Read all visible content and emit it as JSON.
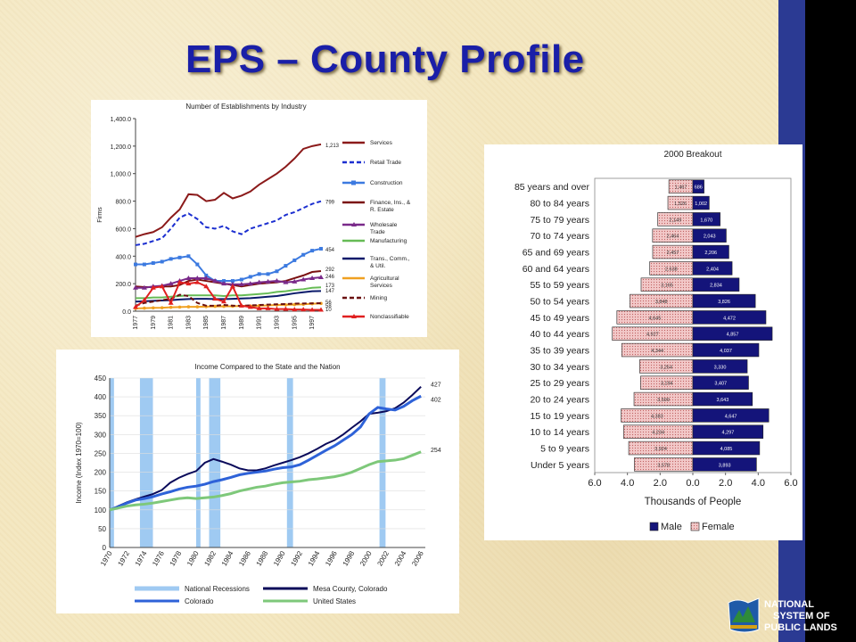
{
  "slide": {
    "title": "EPS – County Profile",
    "colors": {
      "title": "#1a1fa8",
      "side_bar": "#2b3a93",
      "background": "#f4e7c0"
    }
  },
  "logo": {
    "line1": "NATIONAL",
    "line2": "SYSTEM OF",
    "line3": "PUBLIC LANDS",
    "icon": "blm-emblem-icon"
  },
  "chart_data": [
    {
      "type": "line",
      "title": "Number of Establishments by Industry",
      "ylabel": "Firms",
      "xlabel": "",
      "ylim": [
        0,
        1400
      ],
      "yticks": [
        "0.0",
        "200.0",
        "400.0",
        "600.0",
        "800.0",
        "1,000.0",
        "1,200.0",
        "1,400.0"
      ],
      "x": [
        1977,
        1978,
        1979,
        1980,
        1981,
        1982,
        1983,
        1984,
        1985,
        1986,
        1987,
        1988,
        1989,
        1990,
        1991,
        1992,
        1993,
        1994,
        1995,
        1996,
        1997,
        1998
      ],
      "xticks": [
        "1977",
        "1979",
        "1981",
        "1983",
        "1985",
        "1987",
        "1989",
        "1991",
        "1993",
        "1995",
        "1997"
      ],
      "series": [
        {
          "name": "Services",
          "color": "#8b1a1a",
          "style": "solid",
          "end_label": "1,213",
          "values": [
            540,
            560,
            575,
            610,
            680,
            740,
            850,
            845,
            800,
            810,
            860,
            820,
            840,
            870,
            920,
            960,
            1000,
            1050,
            1110,
            1180,
            1200,
            1213
          ]
        },
        {
          "name": "Retail Trade",
          "color": "#1c2fd0",
          "style": "dashed",
          "end_label": "799",
          "values": [
            480,
            490,
            510,
            530,
            600,
            680,
            710,
            670,
            610,
            600,
            620,
            580,
            560,
            600,
            620,
            640,
            660,
            700,
            720,
            750,
            780,
            799
          ]
        },
        {
          "name": "Construction",
          "color": "#3c7ae0",
          "style": "solid",
          "end_label": "454",
          "values": [
            340,
            340,
            350,
            360,
            380,
            390,
            400,
            340,
            260,
            220,
            220,
            220,
            230,
            250,
            270,
            270,
            290,
            330,
            370,
            410,
            440,
            454
          ]
        },
        {
          "name": "Finance, Ins., & R. Estate",
          "color": "#7a1010",
          "style": "solid",
          "end_label": "292",
          "values": [
            180,
            175,
            175,
            180,
            180,
            190,
            220,
            230,
            220,
            210,
            200,
            190,
            180,
            190,
            200,
            205,
            210,
            220,
            240,
            260,
            285,
            292
          ]
        },
        {
          "name": "Wholesale Trade",
          "color": "#7a2a8a",
          "style": "solid",
          "end_label": "246",
          "values": [
            170,
            170,
            180,
            185,
            200,
            220,
            240,
            240,
            240,
            220,
            200,
            195,
            195,
            200,
            210,
            215,
            220,
            210,
            215,
            230,
            240,
            246
          ]
        },
        {
          "name": "Manufacturing",
          "color": "#66bb55",
          "style": "solid",
          "end_label": "173",
          "values": [
            95,
            95,
            100,
            100,
            105,
            110,
            115,
            115,
            115,
            115,
            110,
            115,
            115,
            120,
            125,
            130,
            140,
            145,
            155,
            160,
            170,
            173
          ]
        },
        {
          "name": "Trans., Comm., & Util.",
          "color": "#0a1a6a",
          "style": "solid",
          "end_label": "147",
          "values": [
            70,
            72,
            75,
            78,
            80,
            85,
            88,
            90,
            90,
            88,
            88,
            90,
            92,
            95,
            100,
            105,
            110,
            120,
            130,
            138,
            145,
            147
          ]
        },
        {
          "name": "Agricultural Services",
          "color": "#f0a020",
          "style": "solid",
          "end_label": "56",
          "values": [
            20,
            22,
            24,
            25,
            28,
            30,
            32,
            32,
            33,
            35,
            35,
            36,
            38,
            38,
            40,
            42,
            45,
            46,
            48,
            50,
            54,
            56
          ]
        },
        {
          "name": "Mining",
          "color": "#6a1010",
          "style": "dashed",
          "end_label": "58",
          "values": [
            40,
            60,
            70,
            80,
            90,
            120,
            110,
            60,
            40,
            40,
            45,
            40,
            40,
            42,
            45,
            48,
            50,
            52,
            55,
            56,
            57,
            58
          ]
        },
        {
          "name": "Nonclassifiable",
          "color": "#e02020",
          "style": "solid",
          "end_label": "10",
          "values": [
            30,
            80,
            170,
            180,
            60,
            210,
            200,
            210,
            180,
            90,
            70,
            180,
            40,
            30,
            20,
            20,
            15,
            15,
            12,
            12,
            10,
            10
          ]
        }
      ]
    },
    {
      "type": "line",
      "title": "Income Compared to the State and the Nation",
      "ylabel": "Income (Index 1970=100)",
      "xlabel": "",
      "ylim": [
        0,
        450
      ],
      "yticks": [
        "0",
        "50",
        "100",
        "150",
        "200",
        "250",
        "300",
        "350",
        "400",
        "450"
      ],
      "x": [
        1970,
        1971,
        1972,
        1973,
        1974,
        1975,
        1976,
        1977,
        1978,
        1979,
        1980,
        1981,
        1982,
        1983,
        1984,
        1985,
        1986,
        1987,
        1988,
        1989,
        1990,
        1991,
        1992,
        1993,
        1994,
        1995,
        1996,
        1997,
        1998,
        1999,
        2000,
        2001,
        2002,
        2003,
        2004,
        2005,
        2006
      ],
      "xticks": [
        "1970",
        "1972",
        "1974",
        "1976",
        "1978",
        "1980",
        "1982",
        "1984",
        "1986",
        "1988",
        "1990",
        "1992",
        "1994",
        "1996",
        "1998",
        "2000",
        "2002",
        "2004",
        "2006"
      ],
      "recessions": [
        [
          1970,
          1970.5
        ],
        [
          1973.5,
          1975
        ],
        [
          1980,
          1980.5
        ],
        [
          1981.5,
          1982.8
        ],
        [
          1990.5,
          1991.2
        ],
        [
          2001.2,
          2001.9
        ]
      ],
      "series": [
        {
          "name": "Mesa County, Colorado",
          "color": "#0a0a5a",
          "end_label": "427",
          "values": [
            100,
            110,
            120,
            128,
            135,
            142,
            152,
            172,
            185,
            195,
            203,
            225,
            235,
            228,
            220,
            210,
            205,
            205,
            210,
            218,
            225,
            232,
            240,
            250,
            262,
            275,
            285,
            300,
            318,
            335,
            355,
            358,
            362,
            370,
            385,
            405,
            427
          ]
        },
        {
          "name": "Colorado",
          "color": "#2e62d8",
          "end_label": "402",
          "values": [
            100,
            108,
            118,
            126,
            130,
            135,
            142,
            148,
            155,
            160,
            163,
            168,
            175,
            180,
            186,
            193,
            197,
            200,
            203,
            208,
            212,
            214,
            220,
            232,
            245,
            258,
            270,
            285,
            300,
            320,
            355,
            372,
            368,
            365,
            375,
            390,
            402
          ]
        },
        {
          "name": "United States",
          "color": "#7ec87a",
          "end_label": "254",
          "values": [
            100,
            105,
            110,
            113,
            115,
            118,
            122,
            126,
            130,
            132,
            130,
            132,
            134,
            138,
            143,
            150,
            155,
            160,
            163,
            168,
            172,
            174,
            176,
            180,
            182,
            185,
            188,
            193,
            200,
            210,
            220,
            228,
            230,
            232,
            236,
            245,
            254
          ]
        }
      ],
      "legend": [
        "National Recessions",
        "Mesa County, Colorado",
        "Colorado",
        "United States"
      ],
      "legend_colors": [
        "#9fcaf2",
        "#0a0a5a",
        "#2e62d8",
        "#7ec87a"
      ]
    },
    {
      "type": "bar",
      "title": "2000 Breakout",
      "xlabel": "Thousands of People",
      "xlim": [
        -6,
        6
      ],
      "xticks": [
        "6.0",
        "4.0",
        "2.0",
        "0.0",
        "2.0",
        "4.0",
        "6.0"
      ],
      "categories": [
        "85 years and over",
        "80 to 84 years",
        "75 to 79 years",
        "70 to 74 years",
        "65 and 69 years",
        "60 and 64 years",
        "55 to 59 years",
        "50 to 54 years",
        "45 to 49 years",
        "40 to 44 years",
        "35 to 39 years",
        "30 to 34 years",
        "25 to 29 years",
        "20 to 24 years",
        "15 to 19 years",
        "10 to 14 years",
        "5 to 9 years",
        "Under 5 years"
      ],
      "series": [
        {
          "name": "Male",
          "color": "#14147a",
          "values": [
            0.686,
            1.002,
            1.67,
            2.043,
            2.206,
            2.404,
            2.834,
            3.826,
            4.472,
            4.857,
            4.037,
            3.33,
            3.407,
            3.643,
            4.647,
            4.297,
            4.085,
            3.893
          ],
          "labels": [
            "686",
            "1,002",
            "1,670",
            "2,043",
            "2,206",
            "2,404",
            "2,834",
            "3,826",
            "4,472",
            "4,857",
            "4,037",
            "3,330",
            "3,407",
            "3,643",
            "4,647",
            "4,297",
            "4,085",
            "3,893"
          ]
        },
        {
          "name": "Female",
          "color": "#f2c8c8",
          "values": [
            1.467,
            1.526,
            2.149,
            2.464,
            2.457,
            2.638,
            3.165,
            3.848,
            4.645,
            4.927,
            4.344,
            3.254,
            3.194,
            3.599,
            4.383,
            4.234,
            3.924,
            3.578
          ],
          "labels": [
            "1,467",
            "1,526",
            "2,149",
            "2,464",
            "2,457",
            "2,638",
            "3,165",
            "3,848",
            "4,645",
            "4,927",
            "4,344",
            "3,254",
            "3,194",
            "3,599",
            "4,383",
            "4,234",
            "3,924",
            "3,578"
          ]
        }
      ],
      "legend": [
        "Male",
        "Female"
      ]
    }
  ]
}
